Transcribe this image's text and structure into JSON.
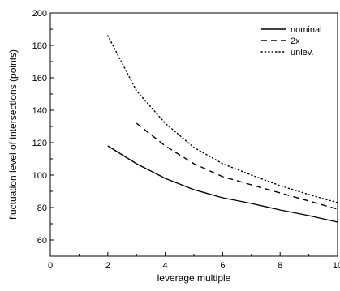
{
  "chart_data": {
    "type": "line",
    "title": "",
    "xlabel": "leverage multiple",
    "ylabel": "fluctuation level of intersections  (points)",
    "xlim": [
      0,
      10
    ],
    "ylim": [
      50,
      200
    ],
    "x_ticks": [
      0,
      2,
      4,
      6,
      8,
      10
    ],
    "x_tick_labels": [
      "0",
      "2",
      "4",
      "6",
      "8",
      "10"
    ],
    "y_ticks": [
      60,
      80,
      100,
      120,
      140,
      160,
      180,
      200
    ],
    "y_tick_labels": [
      "60",
      "80",
      "100",
      "120",
      "140",
      "160",
      "180",
      "200"
    ],
    "grid": false,
    "legend_position": "top-right",
    "series": [
      {
        "name": "nominal",
        "style": "solid",
        "color": "#000000",
        "points": [
          [
            2,
            118
          ],
          [
            3,
            107
          ],
          [
            4,
            98
          ],
          [
            5,
            91
          ],
          [
            6,
            86
          ],
          [
            7,
            82.5
          ],
          [
            8,
            78.5
          ],
          [
            9,
            75
          ],
          [
            10,
            71
          ]
        ]
      },
      {
        "name": "2x",
        "style": "dashed",
        "color": "#000000",
        "points": [
          [
            3,
            132
          ],
          [
            4,
            118
          ],
          [
            5,
            107
          ],
          [
            6,
            99
          ],
          [
            7,
            94
          ],
          [
            8,
            89
          ],
          [
            9,
            84
          ],
          [
            10,
            79
          ]
        ]
      },
      {
        "name": "unlev.",
        "style": "dotted",
        "color": "#000000",
        "points": [
          [
            2,
            186
          ],
          [
            3,
            152
          ],
          [
            4,
            132
          ],
          [
            5,
            117
          ],
          [
            6,
            107
          ],
          [
            7,
            100
          ],
          [
            8,
            93.5
          ],
          [
            9,
            88
          ],
          [
            10,
            83
          ]
        ]
      }
    ]
  }
}
